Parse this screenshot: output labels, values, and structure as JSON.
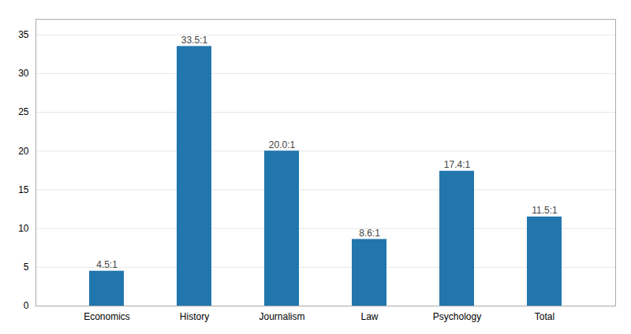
{
  "chart_data": {
    "type": "bar",
    "categories": [
      "Economics",
      "History",
      "Journalism",
      "Law",
      "Psychology",
      "Total"
    ],
    "values": [
      4.5,
      33.5,
      20.0,
      8.6,
      17.4,
      11.5
    ],
    "value_labels": [
      "4.5:1",
      "33.5:1",
      "20.0:1",
      "8.6:1",
      "17.4:1",
      "11.5:1"
    ],
    "data_labels": true,
    "color": "#2176ae",
    "ylim": [
      0,
      37
    ],
    "yticks": [
      0,
      5,
      10,
      15,
      20,
      25,
      30,
      35
    ],
    "grid": true
  }
}
